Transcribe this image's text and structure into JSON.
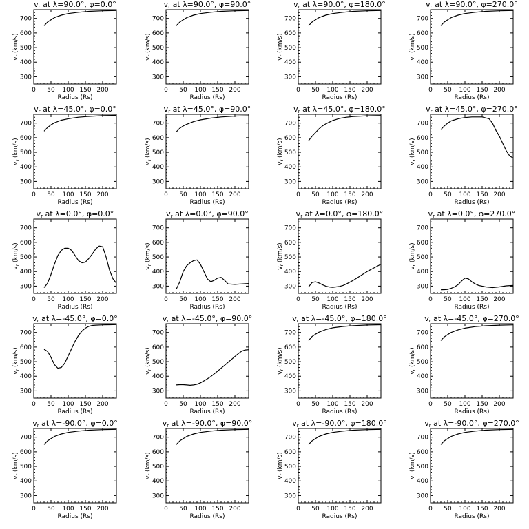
{
  "figure": {
    "xlabel": "Radius (Rs)",
    "ylabel": "v r (km/s)",
    "xticks": [
      0,
      50,
      100,
      150,
      200
    ],
    "yticks": [
      300,
      400,
      500,
      600,
      700
    ],
    "xlim": [
      0,
      240
    ],
    "ylim": [
      250,
      760
    ]
  },
  "chart_data": [
    {
      "type": "line",
      "title": "vr at λ=90.0°, φ=0.0°",
      "latitude": "90.0",
      "longitude": "0.0",
      "x": [
        30,
        40,
        50,
        60,
        80,
        100,
        130,
        160,
        200,
        240
      ],
      "y": [
        650,
        675,
        690,
        705,
        722,
        733,
        742,
        748,
        752,
        754
      ]
    },
    {
      "type": "line",
      "title": "vr at λ=90.0°, φ=90.0°",
      "latitude": "90.0",
      "longitude": "90.0",
      "x": [
        30,
        40,
        50,
        60,
        80,
        100,
        130,
        160,
        200,
        240
      ],
      "y": [
        650,
        675,
        690,
        705,
        722,
        733,
        742,
        748,
        752,
        754
      ]
    },
    {
      "type": "line",
      "title": "vr at λ=90.0°, φ=180.0°",
      "latitude": "90.0",
      "longitude": "180.0",
      "x": [
        30,
        40,
        50,
        60,
        80,
        100,
        130,
        160,
        200,
        240
      ],
      "y": [
        650,
        675,
        690,
        705,
        722,
        733,
        742,
        748,
        752,
        754
      ]
    },
    {
      "type": "line",
      "title": "vr at λ=90.0°, φ=270.0°",
      "latitude": "90.0",
      "longitude": "270.0",
      "x": [
        30,
        40,
        50,
        60,
        80,
        100,
        130,
        160,
        200,
        240
      ],
      "y": [
        650,
        675,
        690,
        705,
        722,
        733,
        742,
        748,
        752,
        754
      ]
    },
    {
      "type": "line",
      "title": "vr at λ=45.0°, φ=0.0°",
      "latitude": "45.0",
      "longitude": "0.0",
      "x": [
        30,
        40,
        50,
        60,
        80,
        100,
        130,
        160,
        200,
        240
      ],
      "y": [
        645,
        670,
        688,
        702,
        720,
        730,
        740,
        746,
        751,
        753
      ]
    },
    {
      "type": "line",
      "title": "vr at λ=45.0°, φ=90.0°",
      "latitude": "45.0",
      "longitude": "90.0",
      "x": [
        30,
        40,
        50,
        60,
        80,
        100,
        130,
        160,
        200,
        240
      ],
      "y": [
        640,
        665,
        680,
        692,
        710,
        722,
        734,
        742,
        748,
        750
      ]
    },
    {
      "type": "line",
      "title": "vr at λ=45.0°, φ=180.0°",
      "latitude": "45.0",
      "longitude": "180.0",
      "x": [
        30,
        40,
        50,
        60,
        70,
        80,
        100,
        120,
        140,
        160,
        200,
        240
      ],
      "y": [
        580,
        610,
        635,
        660,
        680,
        695,
        718,
        732,
        740,
        745,
        750,
        752
      ]
    },
    {
      "type": "line",
      "title": "vr at λ=45.0°, φ=270.0°",
      "latitude": "45.0",
      "longitude": "270.0",
      "x": [
        30,
        40,
        50,
        60,
        80,
        100,
        120,
        150,
        170,
        180,
        190,
        200,
        210,
        220,
        230,
        240
      ],
      "y": [
        655,
        680,
        700,
        715,
        730,
        738,
        742,
        742,
        730,
        700,
        650,
        610,
        560,
        510,
        475,
        460
      ]
    },
    {
      "type": "line",
      "title": "vr at λ=0.0°, φ=0.0°",
      "latitude": "0.0",
      "longitude": "0.0",
      "x": [
        30,
        40,
        50,
        60,
        70,
        80,
        90,
        100,
        110,
        120,
        130,
        140,
        150,
        160,
        170,
        180,
        190,
        200,
        210,
        220,
        230,
        240
      ],
      "y": [
        290,
        320,
        380,
        450,
        510,
        545,
        560,
        560,
        545,
        510,
        475,
        460,
        465,
        490,
        520,
        555,
        575,
        570,
        500,
        410,
        350,
        320
      ]
    },
    {
      "type": "line",
      "title": "vr at λ=0.0°, φ=90.0°",
      "latitude": "0.0",
      "longitude": "90.0",
      "x": [
        30,
        40,
        50,
        60,
        70,
        80,
        90,
        100,
        110,
        120,
        130,
        140,
        150,
        160,
        170,
        180,
        200,
        220,
        240
      ],
      "y": [
        280,
        330,
        400,
        440,
        460,
        475,
        480,
        450,
        400,
        350,
        330,
        340,
        355,
        360,
        340,
        315,
        312,
        315,
        318
      ]
    },
    {
      "type": "line",
      "title": "vr at λ=0.0°, φ=180.0°",
      "latitude": "0.0",
      "longitude": "180.0",
      "x": [
        30,
        40,
        50,
        60,
        70,
        80,
        90,
        100,
        110,
        120,
        130,
        140,
        160,
        180,
        200,
        220,
        240
      ],
      "y": [
        295,
        325,
        330,
        322,
        310,
        300,
        294,
        292,
        295,
        298,
        305,
        315,
        340,
        370,
        400,
        425,
        450
      ]
    },
    {
      "type": "line",
      "title": "vr at λ=0.0°, φ=270.0°",
      "latitude": "0.0",
      "longitude": "270.0",
      "x": [
        30,
        40,
        50,
        60,
        70,
        80,
        90,
        100,
        110,
        120,
        130,
        140,
        160,
        180,
        200,
        220,
        240
      ],
      "y": [
        275,
        276,
        278,
        285,
        295,
        310,
        335,
        355,
        350,
        330,
        315,
        305,
        295,
        290,
        295,
        302,
        305
      ]
    },
    {
      "type": "line",
      "title": "vr at λ=-45.0°, φ=0.0°",
      "latitude": "-45.0",
      "longitude": "0.0",
      "x": [
        30,
        40,
        50,
        60,
        70,
        80,
        90,
        100,
        110,
        120,
        130,
        140,
        150,
        160,
        170,
        180,
        200,
        220,
        240
      ],
      "y": [
        585,
        570,
        530,
        480,
        455,
        460,
        490,
        540,
        590,
        640,
        680,
        710,
        730,
        742,
        748,
        750,
        752,
        753,
        754
      ]
    },
    {
      "type": "line",
      "title": "vr at λ=-45.0°, φ=90.0°",
      "latitude": "-45.0",
      "longitude": "90.0",
      "x": [
        30,
        40,
        50,
        60,
        70,
        80,
        90,
        100,
        110,
        120,
        130,
        140,
        150,
        160,
        170,
        180,
        190,
        200,
        210,
        220,
        230,
        240
      ],
      "y": [
        340,
        342,
        342,
        340,
        338,
        340,
        345,
        355,
        368,
        382,
        398,
        416,
        435,
        455,
        475,
        495,
        515,
        535,
        555,
        572,
        580,
        582
      ]
    },
    {
      "type": "line",
      "title": "vr at λ=-45.0°, φ=180.0°",
      "latitude": "-45.0",
      "longitude": "180.0",
      "x": [
        30,
        40,
        50,
        60,
        80,
        100,
        130,
        160,
        200,
        240
      ],
      "y": [
        645,
        672,
        688,
        702,
        720,
        732,
        741,
        747,
        751,
        753
      ]
    },
    {
      "type": "line",
      "title": "vr at λ=-45.0°, φ=270.0°",
      "latitude": "-45.0",
      "longitude": "270.0",
      "x": [
        30,
        40,
        50,
        60,
        80,
        100,
        130,
        160,
        200,
        240
      ],
      "y": [
        645,
        670,
        686,
        700,
        718,
        730,
        740,
        746,
        750,
        752
      ]
    },
    {
      "type": "line",
      "title": "vr at λ=-90.0°, φ=0.0°",
      "latitude": "-90.0",
      "longitude": "0.0",
      "x": [
        30,
        40,
        50,
        60,
        80,
        100,
        130,
        160,
        200,
        240
      ],
      "y": [
        650,
        675,
        690,
        705,
        722,
        733,
        742,
        748,
        752,
        754
      ]
    },
    {
      "type": "line",
      "title": "vr at λ=-90.0°, φ=90.0°",
      "latitude": "-90.0",
      "longitude": "90.0",
      "x": [
        30,
        40,
        50,
        60,
        80,
        100,
        130,
        160,
        200,
        240
      ],
      "y": [
        650,
        675,
        690,
        705,
        722,
        733,
        742,
        748,
        752,
        754
      ]
    },
    {
      "type": "line",
      "title": "vr at λ=-90.0°, φ=180.0°",
      "latitude": "-90.0",
      "longitude": "180.0",
      "x": [
        30,
        40,
        50,
        60,
        80,
        100,
        130,
        160,
        200,
        240
      ],
      "y": [
        650,
        675,
        690,
        705,
        722,
        733,
        742,
        748,
        752,
        754
      ]
    },
    {
      "type": "line",
      "title": "vr at λ=-90.0°, φ=270.0°",
      "latitude": "-90.0",
      "longitude": "270.0",
      "x": [
        30,
        40,
        50,
        60,
        80,
        100,
        130,
        160,
        200,
        240
      ],
      "y": [
        650,
        675,
        690,
        705,
        722,
        733,
        742,
        748,
        752,
        754
      ]
    }
  ]
}
